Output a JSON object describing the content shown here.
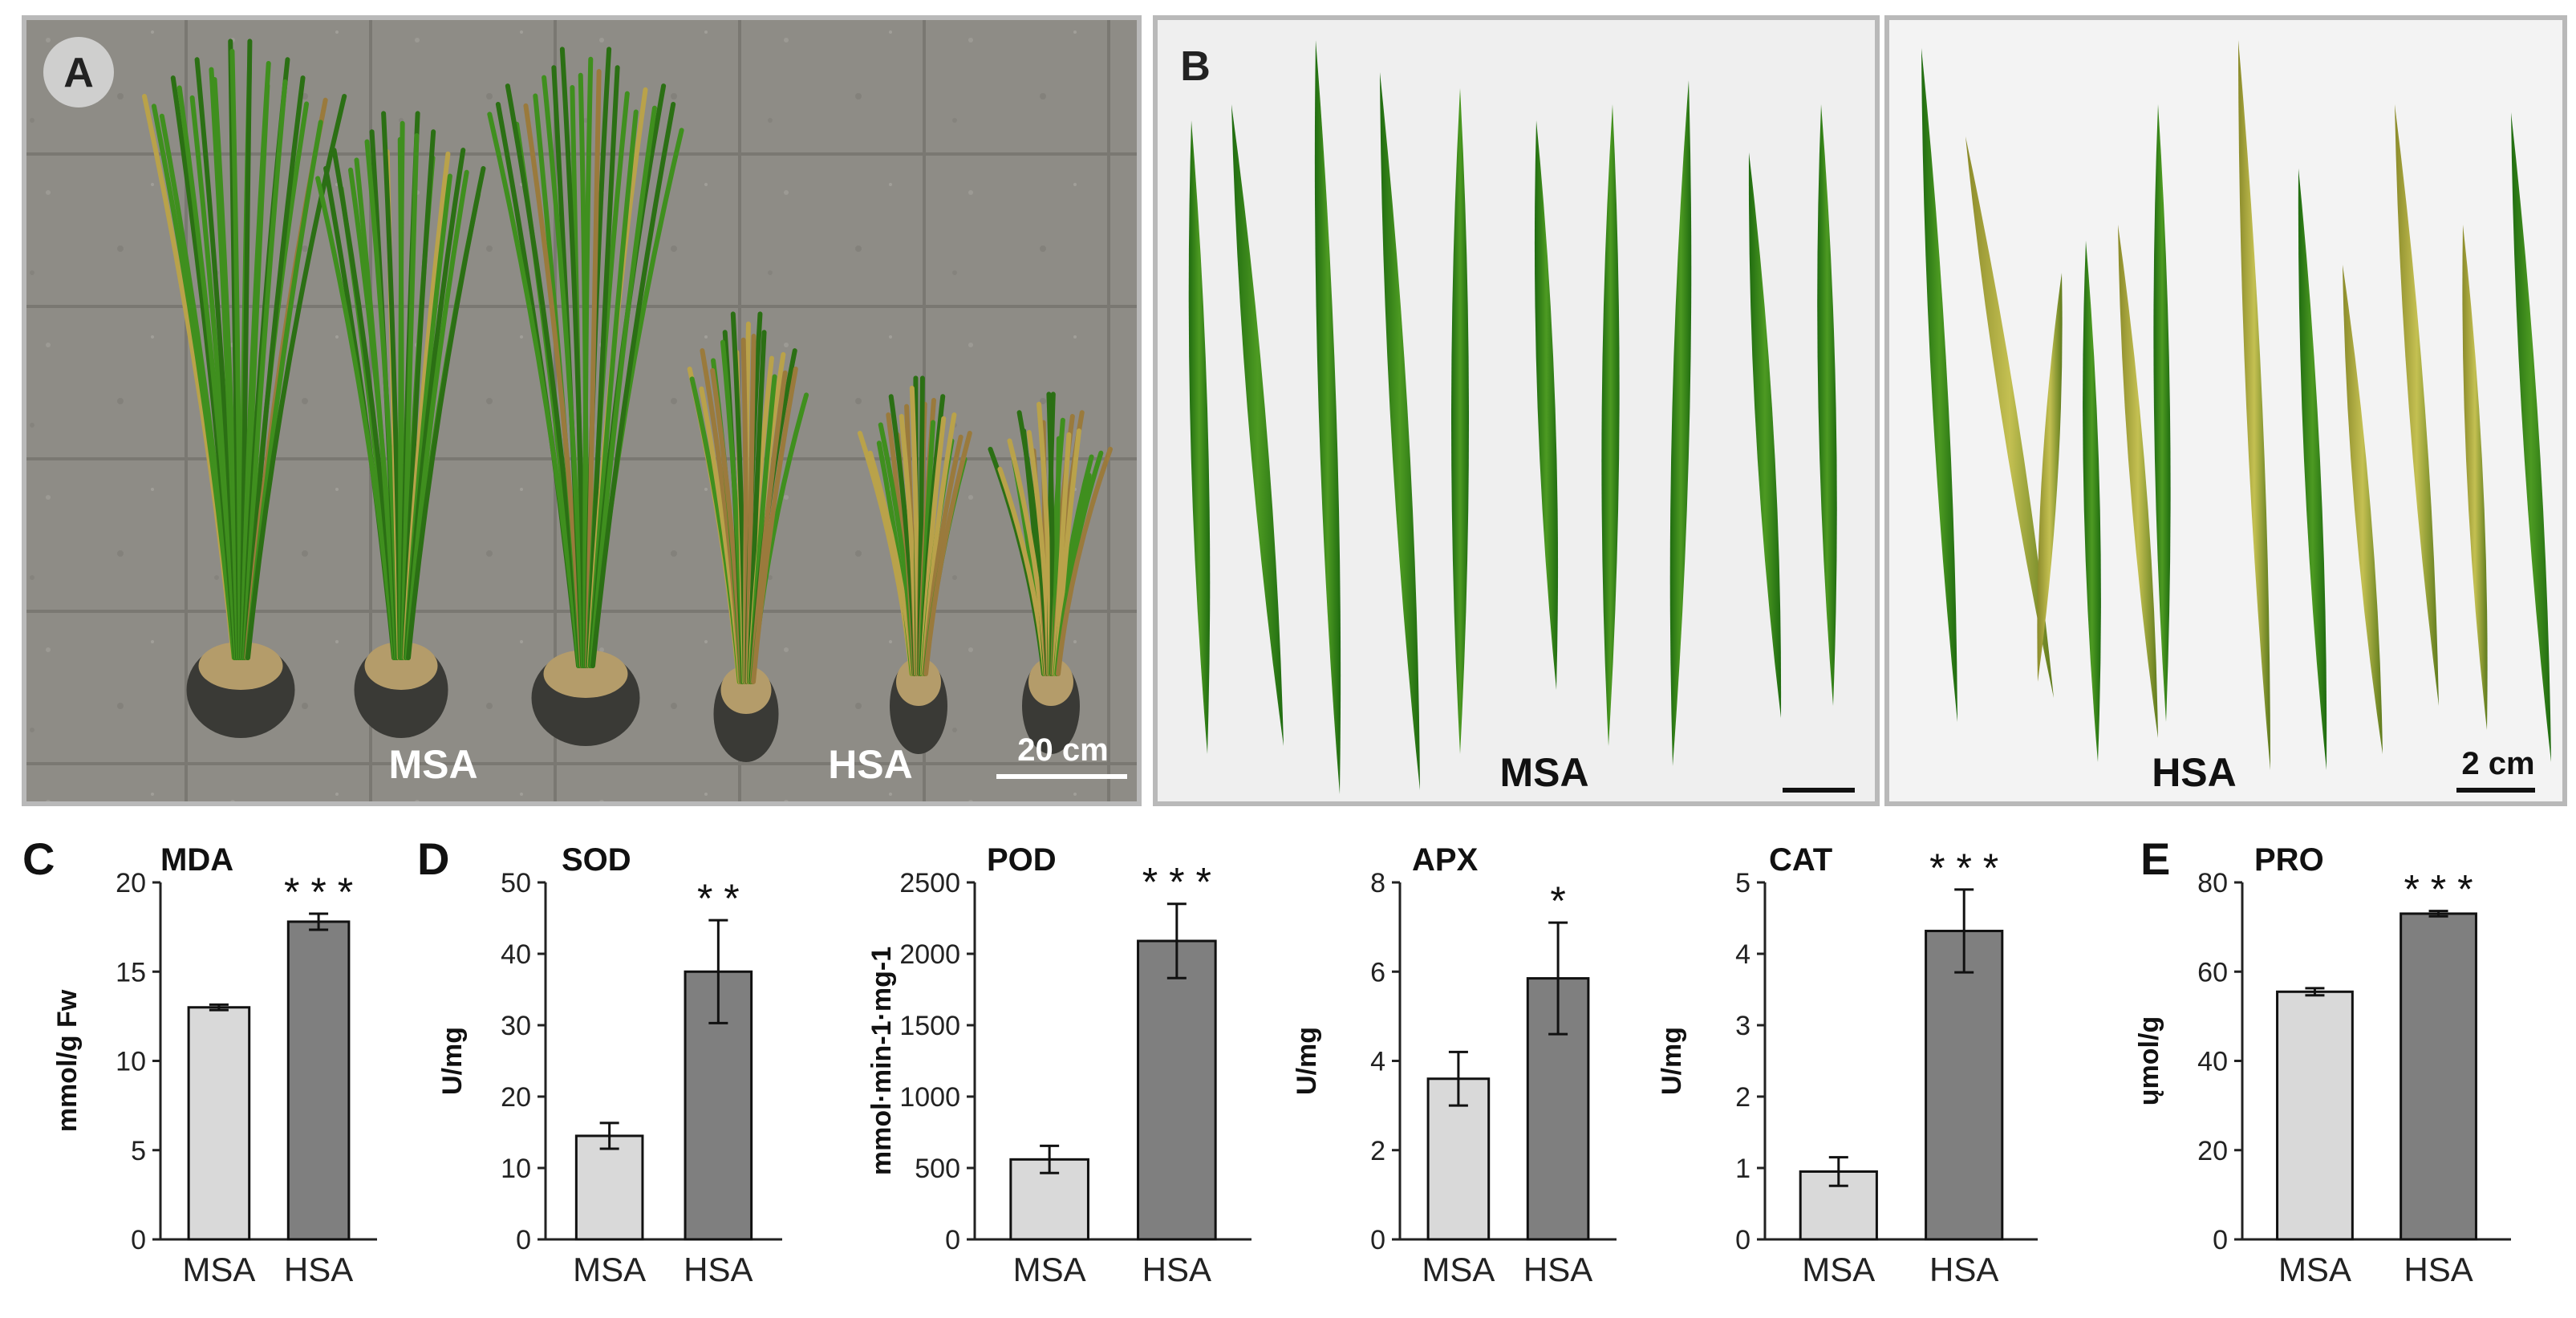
{
  "figure": {
    "panels": {
      "A": {
        "label": "A",
        "msa_label": "MSA",
        "hsa_label": "HSA",
        "scale_bar": "20 cm"
      },
      "B": {
        "label": "B",
        "msa_label": "MSA",
        "hsa_label": "HSA",
        "scale_bar": "2 cm"
      },
      "C": {
        "label": "C"
      },
      "D": {
        "label": "D"
      },
      "E": {
        "label": "E"
      }
    }
  },
  "colors": {
    "msa_bar": "#d9d9d9",
    "hsa_bar": "#7f7f7f",
    "green_leaf": "#2f7d16",
    "yellow_leaf": "#c9b64a"
  },
  "chart_data": [
    {
      "id": "mda",
      "panel": "C",
      "type": "bar",
      "title": "MDA",
      "ylabel": "mmol/g Fw",
      "categories": [
        "MSA",
        "HSA"
      ],
      "values": [
        13.0,
        17.8
      ],
      "errors": [
        0.15,
        0.45
      ],
      "ylim": [
        0,
        20
      ],
      "yticks": [
        "0",
        "5",
        "10",
        "15",
        "20"
      ],
      "significance": "* * *"
    },
    {
      "id": "sod",
      "panel": "D",
      "type": "bar",
      "title": "SOD",
      "ylabel": "U/mg",
      "categories": [
        "MSA",
        "HSA"
      ],
      "values": [
        14.5,
        37.5
      ],
      "errors": [
        1.8,
        7.2
      ],
      "ylim": [
        0,
        50
      ],
      "yticks": [
        "0",
        "10",
        "20",
        "30",
        "40",
        "50"
      ],
      "significance": "* *"
    },
    {
      "id": "pod",
      "panel": "D",
      "type": "bar",
      "title": "POD",
      "ylabel": "mmol·min-1·mg-1",
      "categories": [
        "MSA",
        "HSA"
      ],
      "values": [
        560,
        2090
      ],
      "errors": [
        95,
        260
      ],
      "ylim": [
        0,
        2500
      ],
      "yticks": [
        "0",
        "500",
        "1000",
        "1500",
        "2000",
        "2500"
      ],
      "significance": "* * *"
    },
    {
      "id": "apx",
      "panel": "D",
      "type": "bar",
      "title": "APX",
      "ylabel": "U/mg",
      "categories": [
        "MSA",
        "HSA"
      ],
      "values": [
        3.6,
        5.85
      ],
      "errors": [
        0.6,
        1.25
      ],
      "ylim": [
        0,
        8
      ],
      "yticks": [
        "0",
        "2",
        "4",
        "6",
        "8"
      ],
      "significance": "*"
    },
    {
      "id": "cat",
      "panel": "D",
      "type": "bar",
      "title": "CAT",
      "ylabel": "U/mg",
      "categories": [
        "MSA",
        "HSA"
      ],
      "values": [
        0.95,
        4.32
      ],
      "errors": [
        0.2,
        0.58
      ],
      "ylim": [
        0,
        5
      ],
      "yticks": [
        "0",
        "1",
        "2",
        "3",
        "4",
        "5"
      ],
      "significance": "* * *"
    },
    {
      "id": "pro",
      "panel": "E",
      "type": "bar",
      "title": "PRO",
      "ylabel": "ųmol/g",
      "categories": [
        "MSA",
        "HSA"
      ],
      "values": [
        55.5,
        73.0
      ],
      "errors": [
        0.8,
        0.6
      ],
      "ylim": [
        0,
        80
      ],
      "yticks": [
        "0",
        "20",
        "40",
        "60",
        "80"
      ],
      "significance": "* * *"
    }
  ]
}
